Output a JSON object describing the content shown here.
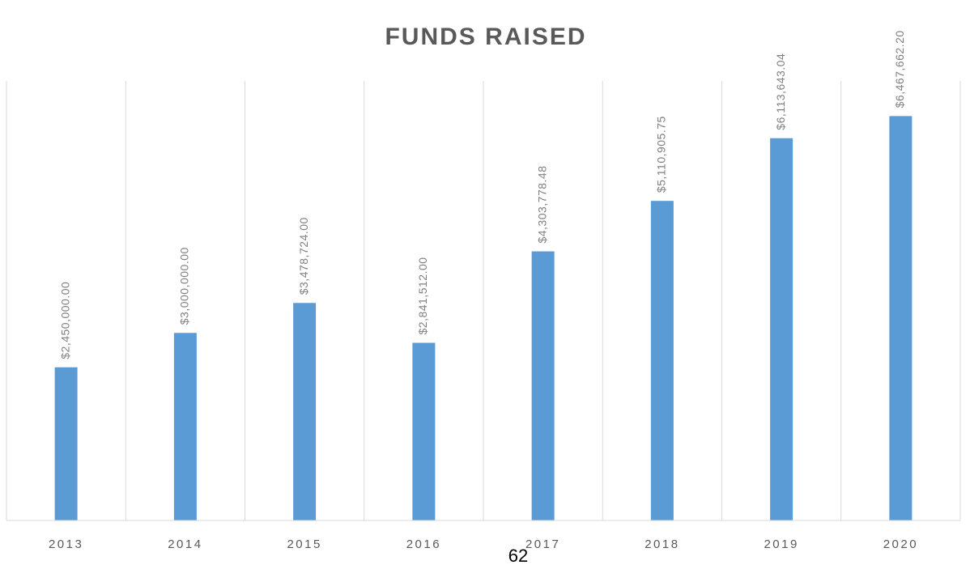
{
  "chart_data": {
    "type": "bar",
    "title": "FUNDS RAISED",
    "categories": [
      "2013",
      "2014",
      "2015",
      "2016",
      "2017",
      "2018",
      "2019",
      "2020"
    ],
    "values": [
      2450000,
      3000000,
      3478724,
      2841512,
      4303778.48,
      5110905.75,
      6113643.04,
      6467662.2
    ],
    "value_labels": [
      "$2,450,000.00",
      "$3,000,000.00",
      "$3,478,724.00",
      "$2,841,512.00",
      "$4,303,778.48",
      "$5,110,905.75",
      "$6,113,643.04",
      "$6,467,662.20"
    ],
    "color": "#5b9bd5",
    "ylim": [
      0,
      8000000
    ],
    "grid": true
  },
  "page_number": "62"
}
